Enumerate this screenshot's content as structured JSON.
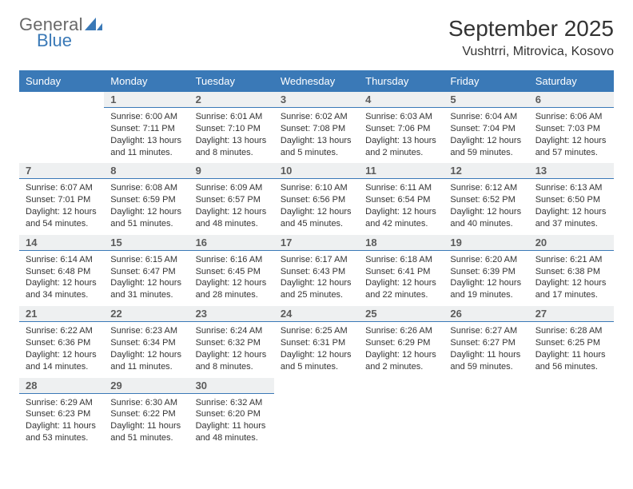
{
  "logo": {
    "line1": "General",
    "line2": "Blue",
    "color_gray": "#696969",
    "color_blue": "#3a79b7"
  },
  "title": "September 2025",
  "location": "Vushtrri, Mitrovica, Kosovo",
  "styling": {
    "header_bg": "#3a79b7",
    "header_text": "#ffffff",
    "daynum_bg": "#eef0f1",
    "daynum_border": "#3a79b7",
    "page_bg": "#ffffff",
    "body_text": "#333333",
    "title_fontsize": 28,
    "location_fontsize": 16,
    "weekday_fontsize": 13,
    "daynum_fontsize": 13,
    "cell_fontsize": 11
  },
  "weekdays": [
    "Sunday",
    "Monday",
    "Tuesday",
    "Wednesday",
    "Thursday",
    "Friday",
    "Saturday"
  ],
  "weeks": [
    [
      null,
      {
        "n": "1",
        "sr": "Sunrise: 6:00 AM",
        "ss": "Sunset: 7:11 PM",
        "dl": "Daylight: 13 hours and 11 minutes."
      },
      {
        "n": "2",
        "sr": "Sunrise: 6:01 AM",
        "ss": "Sunset: 7:10 PM",
        "dl": "Daylight: 13 hours and 8 minutes."
      },
      {
        "n": "3",
        "sr": "Sunrise: 6:02 AM",
        "ss": "Sunset: 7:08 PM",
        "dl": "Daylight: 13 hours and 5 minutes."
      },
      {
        "n": "4",
        "sr": "Sunrise: 6:03 AM",
        "ss": "Sunset: 7:06 PM",
        "dl": "Daylight: 13 hours and 2 minutes."
      },
      {
        "n": "5",
        "sr": "Sunrise: 6:04 AM",
        "ss": "Sunset: 7:04 PM",
        "dl": "Daylight: 12 hours and 59 minutes."
      },
      {
        "n": "6",
        "sr": "Sunrise: 6:06 AM",
        "ss": "Sunset: 7:03 PM",
        "dl": "Daylight: 12 hours and 57 minutes."
      }
    ],
    [
      {
        "n": "7",
        "sr": "Sunrise: 6:07 AM",
        "ss": "Sunset: 7:01 PM",
        "dl": "Daylight: 12 hours and 54 minutes."
      },
      {
        "n": "8",
        "sr": "Sunrise: 6:08 AM",
        "ss": "Sunset: 6:59 PM",
        "dl": "Daylight: 12 hours and 51 minutes."
      },
      {
        "n": "9",
        "sr": "Sunrise: 6:09 AM",
        "ss": "Sunset: 6:57 PM",
        "dl": "Daylight: 12 hours and 48 minutes."
      },
      {
        "n": "10",
        "sr": "Sunrise: 6:10 AM",
        "ss": "Sunset: 6:56 PM",
        "dl": "Daylight: 12 hours and 45 minutes."
      },
      {
        "n": "11",
        "sr": "Sunrise: 6:11 AM",
        "ss": "Sunset: 6:54 PM",
        "dl": "Daylight: 12 hours and 42 minutes."
      },
      {
        "n": "12",
        "sr": "Sunrise: 6:12 AM",
        "ss": "Sunset: 6:52 PM",
        "dl": "Daylight: 12 hours and 40 minutes."
      },
      {
        "n": "13",
        "sr": "Sunrise: 6:13 AM",
        "ss": "Sunset: 6:50 PM",
        "dl": "Daylight: 12 hours and 37 minutes."
      }
    ],
    [
      {
        "n": "14",
        "sr": "Sunrise: 6:14 AM",
        "ss": "Sunset: 6:48 PM",
        "dl": "Daylight: 12 hours and 34 minutes."
      },
      {
        "n": "15",
        "sr": "Sunrise: 6:15 AM",
        "ss": "Sunset: 6:47 PM",
        "dl": "Daylight: 12 hours and 31 minutes."
      },
      {
        "n": "16",
        "sr": "Sunrise: 6:16 AM",
        "ss": "Sunset: 6:45 PM",
        "dl": "Daylight: 12 hours and 28 minutes."
      },
      {
        "n": "17",
        "sr": "Sunrise: 6:17 AM",
        "ss": "Sunset: 6:43 PM",
        "dl": "Daylight: 12 hours and 25 minutes."
      },
      {
        "n": "18",
        "sr": "Sunrise: 6:18 AM",
        "ss": "Sunset: 6:41 PM",
        "dl": "Daylight: 12 hours and 22 minutes."
      },
      {
        "n": "19",
        "sr": "Sunrise: 6:20 AM",
        "ss": "Sunset: 6:39 PM",
        "dl": "Daylight: 12 hours and 19 minutes."
      },
      {
        "n": "20",
        "sr": "Sunrise: 6:21 AM",
        "ss": "Sunset: 6:38 PM",
        "dl": "Daylight: 12 hours and 17 minutes."
      }
    ],
    [
      {
        "n": "21",
        "sr": "Sunrise: 6:22 AM",
        "ss": "Sunset: 6:36 PM",
        "dl": "Daylight: 12 hours and 14 minutes."
      },
      {
        "n": "22",
        "sr": "Sunrise: 6:23 AM",
        "ss": "Sunset: 6:34 PM",
        "dl": "Daylight: 12 hours and 11 minutes."
      },
      {
        "n": "23",
        "sr": "Sunrise: 6:24 AM",
        "ss": "Sunset: 6:32 PM",
        "dl": "Daylight: 12 hours and 8 minutes."
      },
      {
        "n": "24",
        "sr": "Sunrise: 6:25 AM",
        "ss": "Sunset: 6:31 PM",
        "dl": "Daylight: 12 hours and 5 minutes."
      },
      {
        "n": "25",
        "sr": "Sunrise: 6:26 AM",
        "ss": "Sunset: 6:29 PM",
        "dl": "Daylight: 12 hours and 2 minutes."
      },
      {
        "n": "26",
        "sr": "Sunrise: 6:27 AM",
        "ss": "Sunset: 6:27 PM",
        "dl": "Daylight: 11 hours and 59 minutes."
      },
      {
        "n": "27",
        "sr": "Sunrise: 6:28 AM",
        "ss": "Sunset: 6:25 PM",
        "dl": "Daylight: 11 hours and 56 minutes."
      }
    ],
    [
      {
        "n": "28",
        "sr": "Sunrise: 6:29 AM",
        "ss": "Sunset: 6:23 PM",
        "dl": "Daylight: 11 hours and 53 minutes."
      },
      {
        "n": "29",
        "sr": "Sunrise: 6:30 AM",
        "ss": "Sunset: 6:22 PM",
        "dl": "Daylight: 11 hours and 51 minutes."
      },
      {
        "n": "30",
        "sr": "Sunrise: 6:32 AM",
        "ss": "Sunset: 6:20 PM",
        "dl": "Daylight: 11 hours and 48 minutes."
      },
      null,
      null,
      null,
      null
    ]
  ]
}
